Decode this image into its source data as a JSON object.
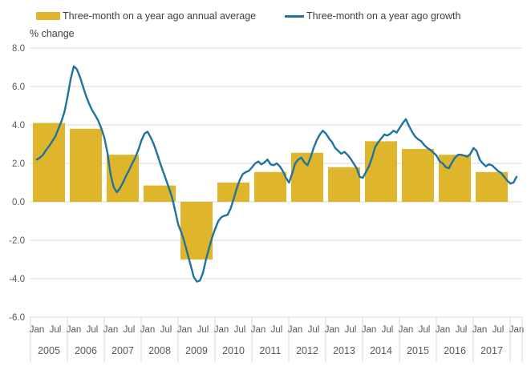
{
  "chart_data": {
    "type": "bar+line",
    "title": "",
    "ylabel": "% change",
    "ylim": [
      -6.0,
      8.0
    ],
    "ytick_interval": 2.0,
    "ytick_labels": [
      "8.0",
      "6.0",
      "4.0",
      "2.0",
      "0.0",
      "-2.0",
      "-4.0",
      "-6.0"
    ],
    "grid": true,
    "grid_color": "#d9d9d9",
    "legend_position": "top",
    "years": [
      "2005",
      "2006",
      "2007",
      "2008",
      "2009",
      "2010",
      "2011",
      "2012",
      "2013",
      "2014",
      "2015",
      "2016",
      "2017"
    ],
    "month_tick_labels": [
      "Jan",
      "Jul"
    ],
    "trailing_tick_label": "Jan",
    "series": [
      {
        "name": "Three-month on a year ago annual average",
        "type": "bar",
        "color": "#dfb52c",
        "categories": [
          "2005",
          "2006",
          "2007",
          "2008",
          "2009",
          "2010",
          "2011",
          "2012",
          "2013",
          "2014",
          "2015",
          "2016",
          "2017"
        ],
        "values": [
          4.1,
          3.8,
          2.45,
          0.85,
          -3.0,
          1.0,
          1.55,
          2.55,
          1.8,
          3.15,
          2.75,
          2.45,
          1.55
        ]
      },
      {
        "name": "Three-month on a year ago growth",
        "type": "line",
        "color": "#1f739d",
        "frequency": "monthly",
        "x_start": "Jan 2005",
        "x_end": "Jan 2018",
        "values": [
          2.2,
          2.3,
          2.45,
          2.7,
          2.9,
          3.15,
          3.4,
          3.8,
          4.2,
          4.7,
          5.5,
          6.4,
          7.05,
          6.9,
          6.5,
          6.0,
          5.5,
          5.1,
          4.75,
          4.5,
          4.2,
          3.8,
          3.3,
          2.5,
          1.4,
          0.75,
          0.5,
          0.7,
          1.0,
          1.35,
          1.65,
          2.0,
          2.3,
          2.7,
          3.2,
          3.55,
          3.65,
          3.35,
          3.0,
          2.55,
          2.05,
          1.6,
          1.15,
          0.7,
          0.2,
          -0.5,
          -1.2,
          -1.6,
          -2.1,
          -2.7,
          -3.3,
          -3.9,
          -4.15,
          -4.1,
          -3.7,
          -3.0,
          -2.4,
          -1.85,
          -1.4,
          -1.0,
          -0.8,
          -0.72,
          -0.68,
          -0.35,
          0.15,
          0.7,
          1.15,
          1.45,
          1.55,
          1.62,
          1.8,
          2.0,
          2.1,
          1.95,
          2.05,
          2.2,
          1.95,
          1.9,
          2.0,
          1.85,
          1.6,
          1.25,
          1.0,
          1.45,
          2.0,
          2.2,
          2.3,
          2.05,
          1.9,
          2.3,
          2.8,
          3.2,
          3.5,
          3.7,
          3.55,
          3.3,
          3.1,
          2.8,
          2.65,
          2.5,
          2.6,
          2.45,
          2.25,
          2.0,
          1.75,
          1.3,
          1.25,
          1.55,
          1.85,
          2.3,
          2.85,
          3.1,
          3.3,
          3.5,
          3.45,
          3.55,
          3.7,
          3.6,
          3.85,
          4.1,
          4.3,
          3.95,
          3.65,
          3.4,
          3.25,
          3.15,
          2.95,
          2.8,
          2.7,
          2.55,
          2.4,
          2.1,
          2.0,
          1.8,
          1.75,
          2.05,
          2.3,
          2.45,
          2.45,
          2.4,
          2.35,
          2.5,
          2.8,
          2.65,
          2.2,
          2.0,
          1.85,
          1.95,
          1.9,
          1.75,
          1.6,
          1.5,
          1.3,
          1.1,
          0.95,
          1.0,
          1.3
        ]
      }
    ]
  }
}
